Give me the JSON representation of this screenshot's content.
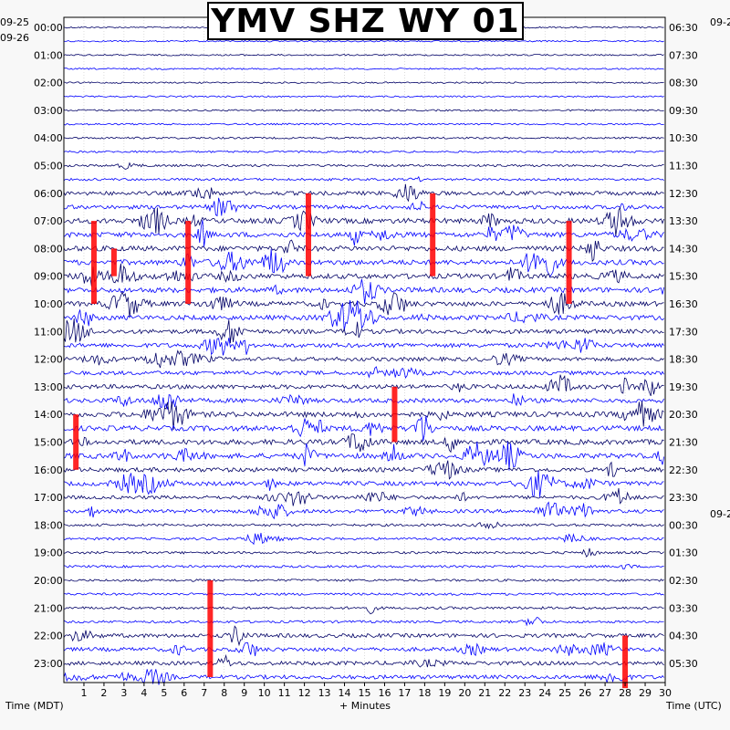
{
  "chart_data": {
    "type": "line",
    "title": "YMV SHZ WY 01",
    "xlabel": "+ Minutes",
    "left_axis_label": "Time (MDT)",
    "right_axis_label": "Time (UTC)",
    "x_ticks": [
      "1",
      "2",
      "3",
      "4",
      "5",
      "6",
      "7",
      "8",
      "9",
      "10",
      "11",
      "12",
      "13",
      "14",
      "15",
      "16",
      "17",
      "18",
      "19",
      "20",
      "21",
      "22",
      "23",
      "24",
      "25",
      "26",
      "27",
      "28",
      "29",
      "30"
    ],
    "xlim": [
      0,
      30
    ],
    "left_date_labels": [
      "09-25",
      "09-26"
    ],
    "right_date_labels": [
      "09-2",
      "09-2"
    ],
    "left_time_labels": [
      "00:00",
      "01:00",
      "02:00",
      "03:00",
      "04:00",
      "05:00",
      "06:00",
      "07:00",
      "08:00",
      "09:00",
      "10:00",
      "11:00",
      "12:00",
      "13:00",
      "14:00",
      "15:00",
      "16:00",
      "17:00",
      "18:00",
      "19:00",
      "20:00",
      "21:00",
      "22:00",
      "23:00"
    ],
    "right_time_labels": [
      "06:30",
      "07:30",
      "08:30",
      "09:30",
      "10:30",
      "11:30",
      "12:30",
      "13:30",
      "14:30",
      "15:30",
      "16:30",
      "17:30",
      "18:30",
      "19:30",
      "20:30",
      "21:30",
      "22:30",
      "23:30",
      "00:30",
      "01:30",
      "02:30",
      "03:30",
      "04:30",
      "05:30"
    ],
    "traces_per_hour": 2,
    "trace_colors": [
      "#000066",
      "#0000ff"
    ],
    "clip_color": "#ff0000",
    "grid": true,
    "activity_levels": {
      "00:00": 0.1,
      "01:00": 0.1,
      "02:00": 0.1,
      "03:00": 0.15,
      "04:00": 0.2,
      "05:00": 0.3,
      "06:00": 0.7,
      "07:00": 1.0,
      "08:00": 1.0,
      "09:00": 1.0,
      "10:00": 0.9,
      "11:00": 0.8,
      "12:00": 0.7,
      "13:00": 0.8,
      "14:00": 1.0,
      "15:00": 1.0,
      "16:00": 0.8,
      "17:00": 0.6,
      "18:00": 0.35,
      "19:00": 0.3,
      "20:00": 0.3,
      "21:00": 0.35,
      "22:00": 0.7,
      "23:00": 0.7
    }
  }
}
